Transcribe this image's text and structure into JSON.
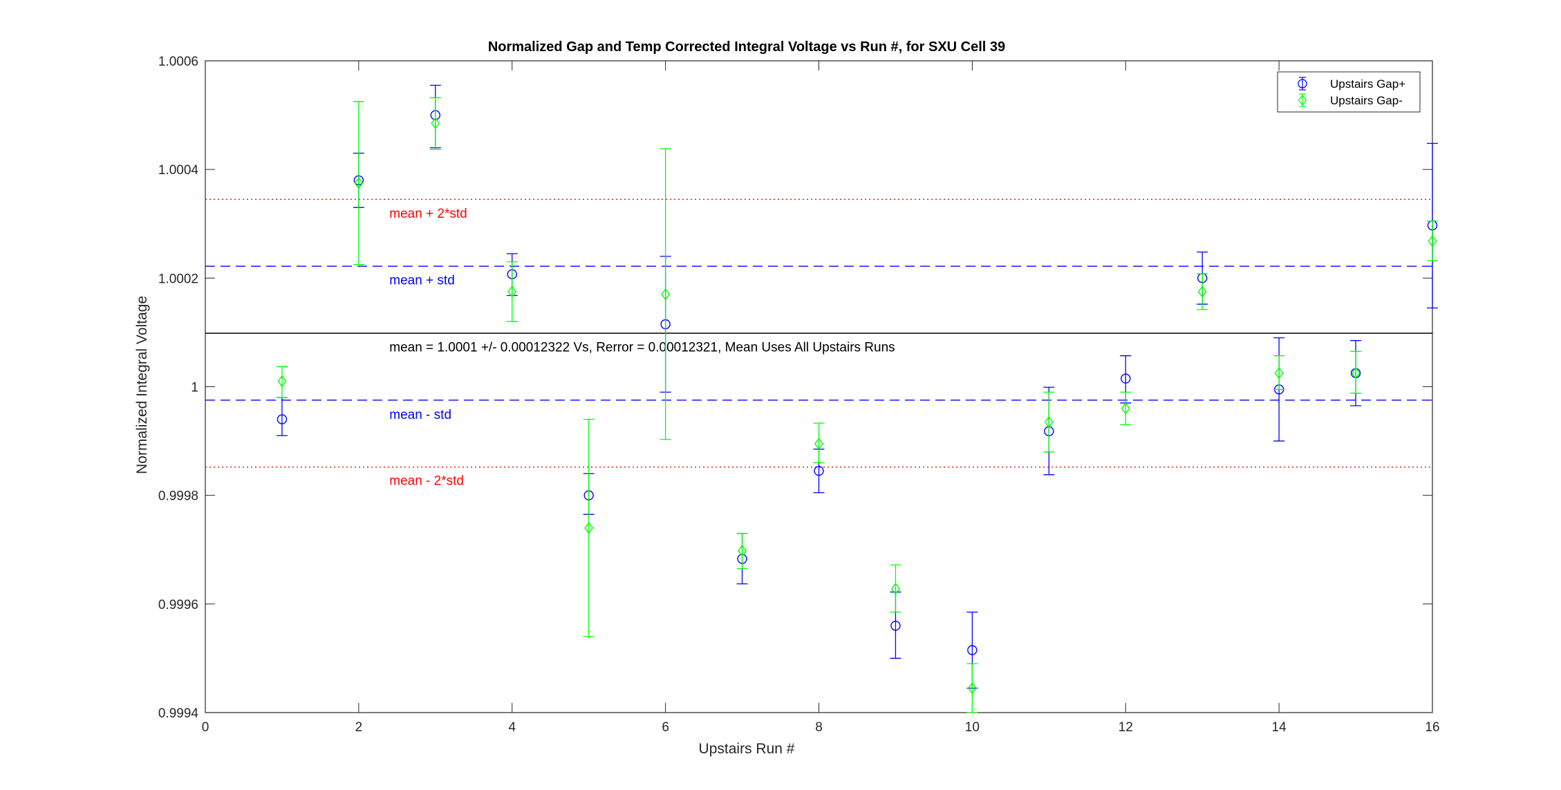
{
  "chart_data": {
    "type": "scatter",
    "title": "Normalized Gap and Temp Corrected Integral Voltage vs Run #, for SXU Cell 39",
    "xlabel": "Upstairs Run #",
    "ylabel": "Normalized Integral Voltage",
    "xlim": [
      0,
      16
    ],
    "ylim": [
      0.9994,
      1.0006
    ],
    "xticks": [
      "0",
      "2",
      "4",
      "6",
      "8",
      "10",
      "12",
      "14",
      "16"
    ],
    "yticks": [
      "0.9994",
      "0.9996",
      "0.9998",
      "1",
      "1.0002",
      "1.0004",
      "1.0006"
    ],
    "grid": false,
    "legend_position": "top-right",
    "series": [
      {
        "name": "Upstairs Gap+",
        "color": "#0000ff",
        "marker": "circle",
        "points": [
          {
            "x": 1,
            "y": 0.99994,
            "lo": 0.99991,
            "hi": 0.99998
          },
          {
            "x": 2,
            "y": 1.00038,
            "lo": 1.00033,
            "hi": 1.00043
          },
          {
            "x": 3,
            "y": 1.0005,
            "lo": 1.00044,
            "hi": 1.000555
          },
          {
            "x": 4,
            "y": 1.000207,
            "lo": 1.000168,
            "hi": 1.000245
          },
          {
            "x": 5,
            "y": 0.9998,
            "lo": 0.999765,
            "hi": 0.99984
          },
          {
            "x": 6,
            "y": 1.000115,
            "lo": 0.99999,
            "hi": 1.00024
          },
          {
            "x": 7,
            "y": 0.999683,
            "lo": 0.999637,
            "hi": 0.99973
          },
          {
            "x": 8,
            "y": 0.999845,
            "lo": 0.999805,
            "hi": 0.999885
          },
          {
            "x": 9,
            "y": 0.99956,
            "lo": 0.9995,
            "hi": 0.999622
          },
          {
            "x": 10,
            "y": 0.999515,
            "lo": 0.999445,
            "hi": 0.999585
          },
          {
            "x": 11,
            "y": 0.999918,
            "lo": 0.999838,
            "hi": 0.999999
          },
          {
            "x": 12,
            "y": 1.000015,
            "lo": 0.99997,
            "hi": 1.000057
          },
          {
            "x": 13,
            "y": 1.0002,
            "lo": 1.000152,
            "hi": 1.000248
          },
          {
            "x": 14,
            "y": 0.999995,
            "lo": 0.9999,
            "hi": 1.00009
          },
          {
            "x": 15,
            "y": 1.000025,
            "lo": 0.999965,
            "hi": 1.000085
          },
          {
            "x": 16,
            "y": 1.000297,
            "lo": 1.000145,
            "hi": 1.000448
          }
        ]
      },
      {
        "name": "Upstairs Gap-",
        "color": "#00ff00",
        "marker": "diamond",
        "points": [
          {
            "x": 1,
            "y": 1.00001,
            "lo": 0.99998,
            "hi": 1.000037
          },
          {
            "x": 2,
            "y": 1.000375,
            "lo": 1.000225,
            "hi": 1.000525
          },
          {
            "x": 3,
            "y": 1.000485,
            "lo": 1.000437,
            "hi": 1.000532
          },
          {
            "x": 4,
            "y": 1.000175,
            "lo": 1.00012,
            "hi": 1.00023
          },
          {
            "x": 5,
            "y": 0.99974,
            "lo": 0.99954,
            "hi": 0.99994
          },
          {
            "x": 6,
            "y": 1.00017,
            "lo": 0.999903,
            "hi": 1.000438
          },
          {
            "x": 7,
            "y": 0.999698,
            "lo": 0.999665,
            "hi": 0.99973
          },
          {
            "x": 8,
            "y": 0.999895,
            "lo": 0.99986,
            "hi": 0.999933
          },
          {
            "x": 9,
            "y": 0.999628,
            "lo": 0.999585,
            "hi": 0.999672
          },
          {
            "x": 10,
            "y": 0.999445,
            "lo": 0.9994,
            "hi": 0.99949
          },
          {
            "x": 11,
            "y": 0.999935,
            "lo": 0.99988,
            "hi": 0.99999
          },
          {
            "x": 12,
            "y": 0.99996,
            "lo": 0.99993,
            "hi": 0.99999
          },
          {
            "x": 13,
            "y": 1.000175,
            "lo": 1.000142,
            "hi": 1.000208
          },
          {
            "x": 14,
            "y": 1.000025,
            "lo": 0.999995,
            "hi": 1.000057
          },
          {
            "x": 15,
            "y": 1.000025,
            "lo": 0.999988,
            "hi": 1.000065
          },
          {
            "x": 16,
            "y": 1.000268,
            "lo": 1.000232,
            "hi": 1.000305
          }
        ]
      }
    ],
    "reference_lines": [
      {
        "label": "mean",
        "y": 1.0000985,
        "color": "#000000",
        "style": "solid"
      },
      {
        "label": "mean + std",
        "y": 1.0002218,
        "color": "#0000ff",
        "style": "dashed"
      },
      {
        "label": "mean - std",
        "y": 0.9999753,
        "color": "#0000ff",
        "style": "dashed"
      },
      {
        "label": "mean + 2*std",
        "y": 1.000345,
        "color": "#ff0000",
        "style": "dotted"
      },
      {
        "label": "mean - 2*std",
        "y": 0.999852,
        "color": "#ff0000",
        "style": "dotted"
      }
    ],
    "annotations": [
      {
        "text": "mean = 1.0001 +/- 0.00012322 Vs, Rerror = 0.00012321, Mean Uses All Upstairs Runs",
        "x": 2.4,
        "y": 1.000074,
        "color": "#000000"
      },
      {
        "text": "mean + std",
        "x": 2.4,
        "y": 1.000197,
        "color": "#0000ff"
      },
      {
        "text": "mean - std",
        "x": 2.4,
        "y": 0.99995,
        "color": "#0000ff"
      },
      {
        "text": "mean + 2*std",
        "x": 2.4,
        "y": 1.00032,
        "color": "#ff0000"
      },
      {
        "text": "mean - 2*std",
        "x": 2.4,
        "y": 0.999828,
        "color": "#ff0000"
      }
    ]
  }
}
